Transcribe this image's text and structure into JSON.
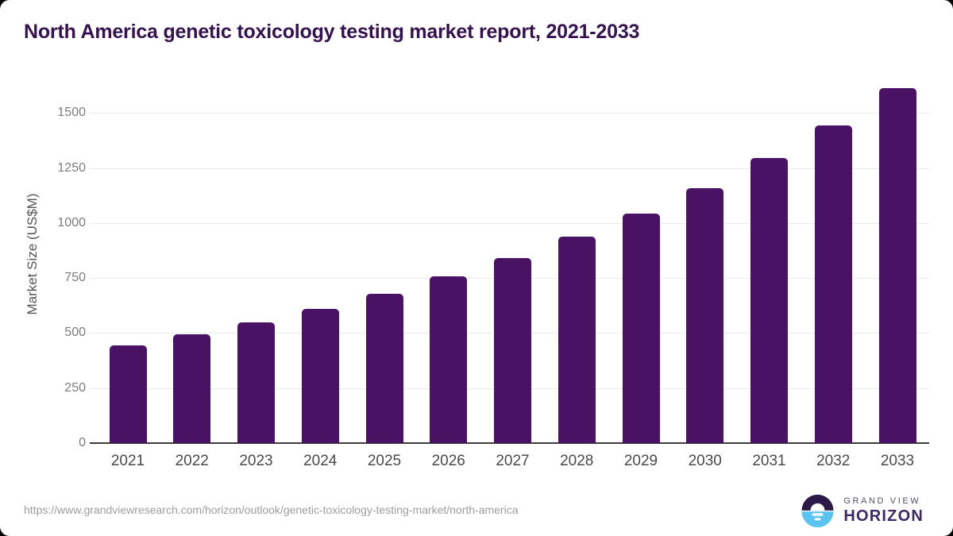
{
  "card": {
    "title": "North America genetic toxicology testing market report, 2021-2033"
  },
  "chart_data": {
    "type": "bar",
    "title": "North America genetic toxicology testing market report, 2021-2033",
    "categories": [
      "2021",
      "2022",
      "2023",
      "2024",
      "2025",
      "2026",
      "2027",
      "2028",
      "2029",
      "2030",
      "2031",
      "2032",
      "2033"
    ],
    "values": [
      443,
      493,
      548,
      609,
      678,
      756,
      840,
      937,
      1042,
      1159,
      1294,
      1444,
      1612
    ],
    "xlabel": "",
    "ylabel": "Market Size (US$M)",
    "ylim": [
      0,
      1625
    ],
    "yticks": [
      0,
      250,
      500,
      750,
      1000,
      1250,
      1500
    ],
    "grid": true,
    "legend": "none",
    "bar_color": "#4a1264"
  },
  "footer": {
    "source_url": "https://www.grandviewresearch.com/horizon/outlook/genetic-toxicology-testing-market/north-america",
    "logo": {
      "line1": "GRAND VIEW",
      "line2": "HORIZON"
    }
  },
  "colors": {
    "title": "#351151",
    "bar": "#4a1264",
    "gridline": "#eaeaea",
    "axis_line": "#3d3d3d",
    "x_tick_label": "#4a4a4a",
    "y_tick_label": "#7c7c7c",
    "logo_purple": "#2b1a47",
    "logo_blue": "#59c4f0"
  }
}
